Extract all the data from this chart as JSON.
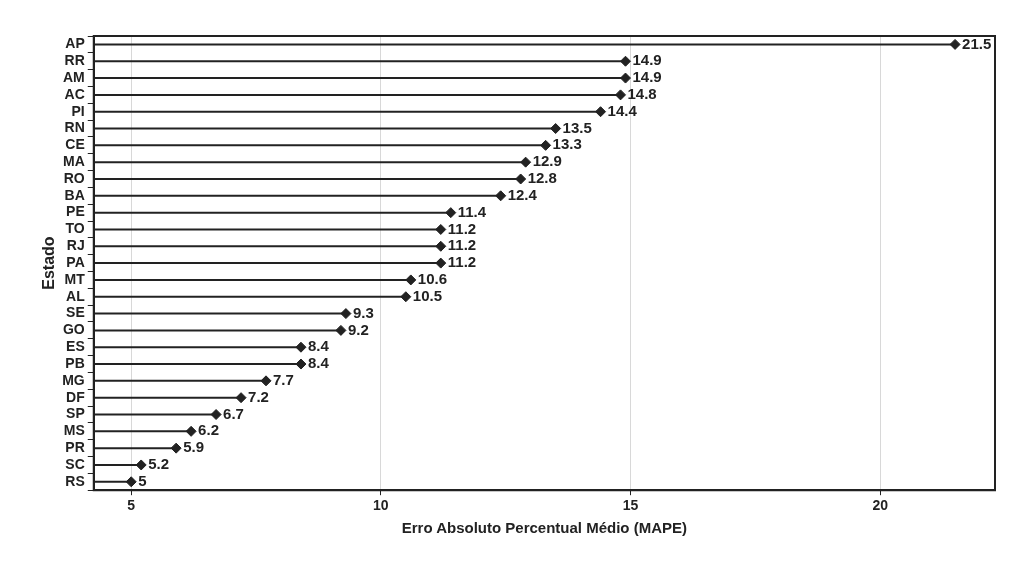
{
  "chart_data": {
    "type": "lollipop",
    "orientation": "horizontal",
    "xlabel": "Erro Absoluto Percentual Médio (MAPE)",
    "ylabel": "Estado",
    "categories": [
      "AP",
      "RR",
      "AM",
      "AC",
      "PI",
      "RN",
      "CE",
      "MA",
      "RO",
      "BA",
      "PE",
      "TO",
      "RJ",
      "PA",
      "MT",
      "AL",
      "SE",
      "GO",
      "ES",
      "PB",
      "MG",
      "DF",
      "SP",
      "MS",
      "PR",
      "SC",
      "RS"
    ],
    "values": [
      21.5,
      14.9,
      14.9,
      14.8,
      14.4,
      13.5,
      13.3,
      12.9,
      12.8,
      12.4,
      11.4,
      11.2,
      11.2,
      11.2,
      10.6,
      10.5,
      9.3,
      9.2,
      8.4,
      8.4,
      7.7,
      7.2,
      6.7,
      6.2,
      5.9,
      5.2,
      5
    ],
    "color": "#222222",
    "xlim": [
      4.25,
      22.3
    ],
    "xticks": [
      5,
      10,
      15,
      20
    ],
    "grid": "x",
    "marker": "diamond",
    "data_labels": true
  }
}
